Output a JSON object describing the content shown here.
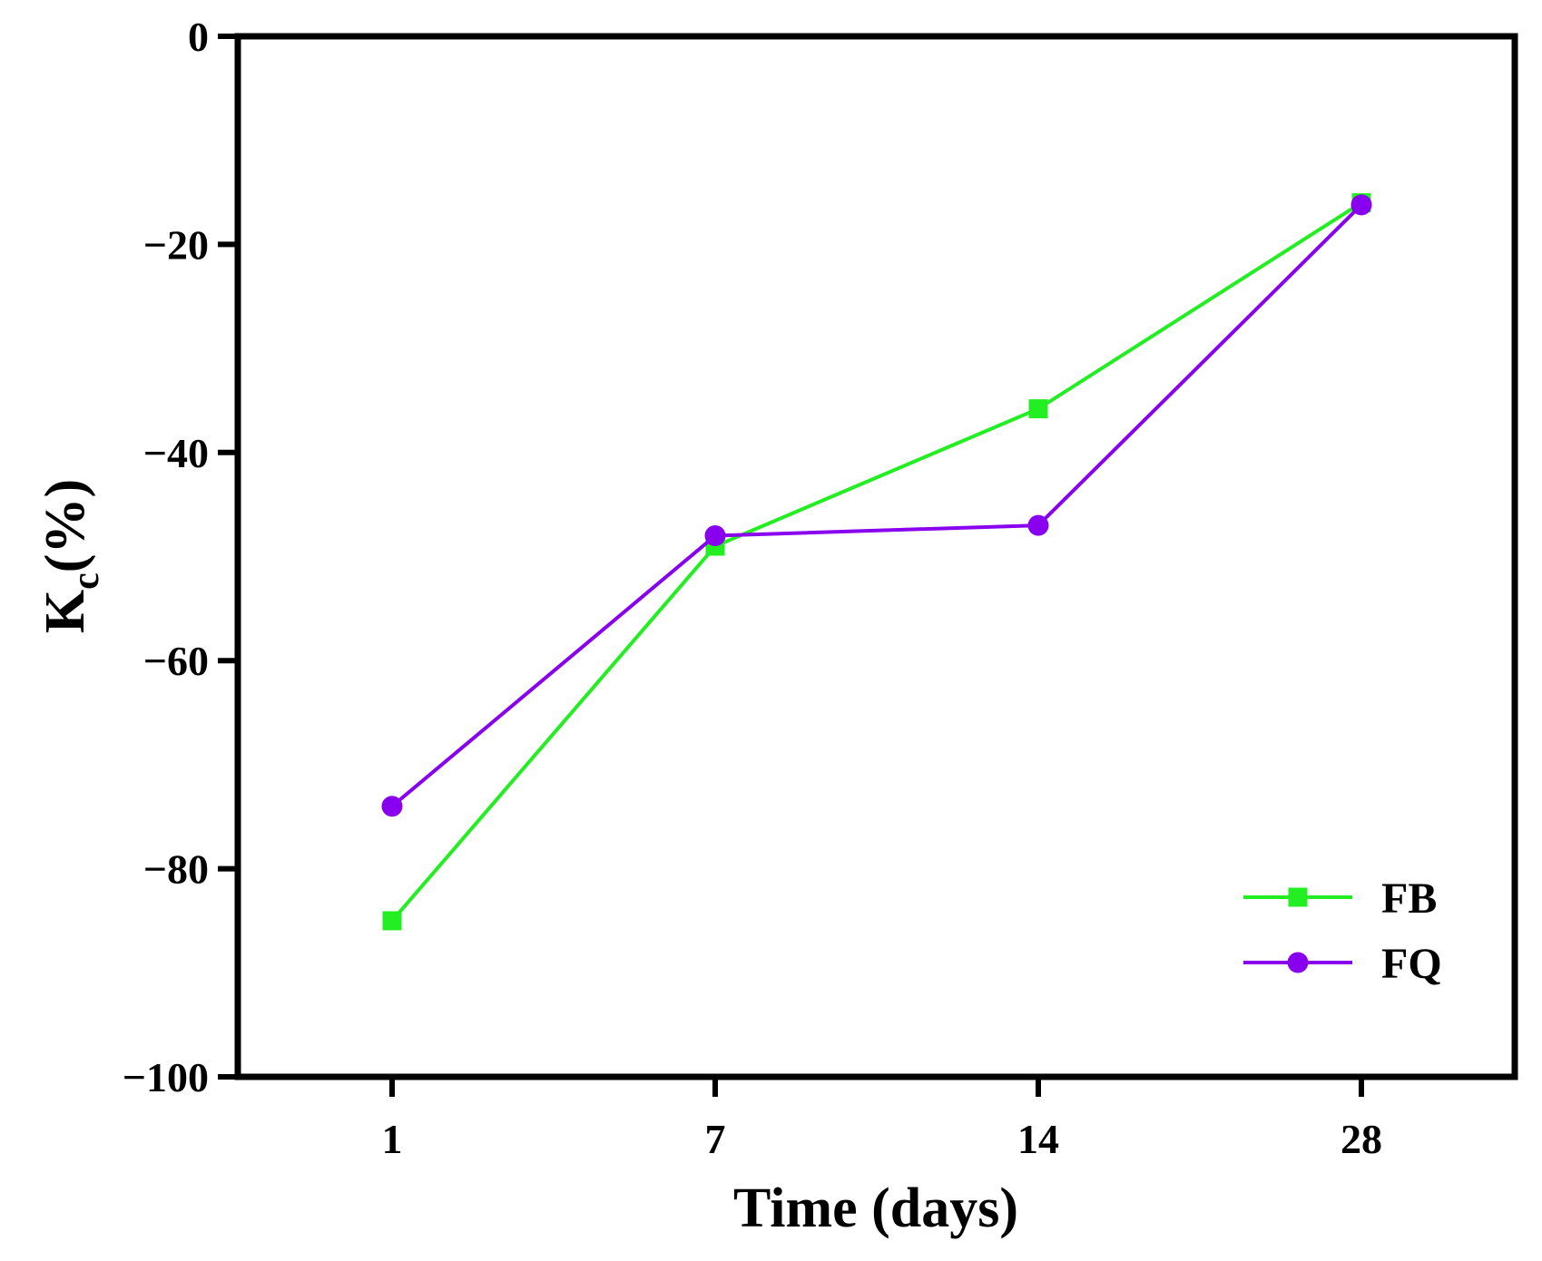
{
  "chart_data": {
    "type": "line",
    "title": "",
    "xlabel": "Time (days)",
    "ylabel": {
      "main": "K",
      "subscript": "c",
      "suffix": "(%)"
    },
    "categories": [
      "1",
      "7",
      "14",
      "28"
    ],
    "ylim": [
      -100,
      0
    ],
    "yticks": [
      0,
      -20,
      -40,
      -60,
      -80,
      -100
    ],
    "ytick_labels": [
      "0",
      "−20",
      "−40",
      "−60",
      "−80",
      "−100"
    ],
    "grid": false,
    "legend_position": "bottom-right",
    "series": [
      {
        "name": "FB",
        "marker": "square",
        "color": "#22ee22",
        "values": [
          -85,
          -49,
          -35.8,
          -16
        ]
      },
      {
        "name": "FQ",
        "marker": "circle",
        "color": "#8800ee",
        "values": [
          -74,
          -48,
          -47,
          -16.2
        ]
      }
    ]
  }
}
